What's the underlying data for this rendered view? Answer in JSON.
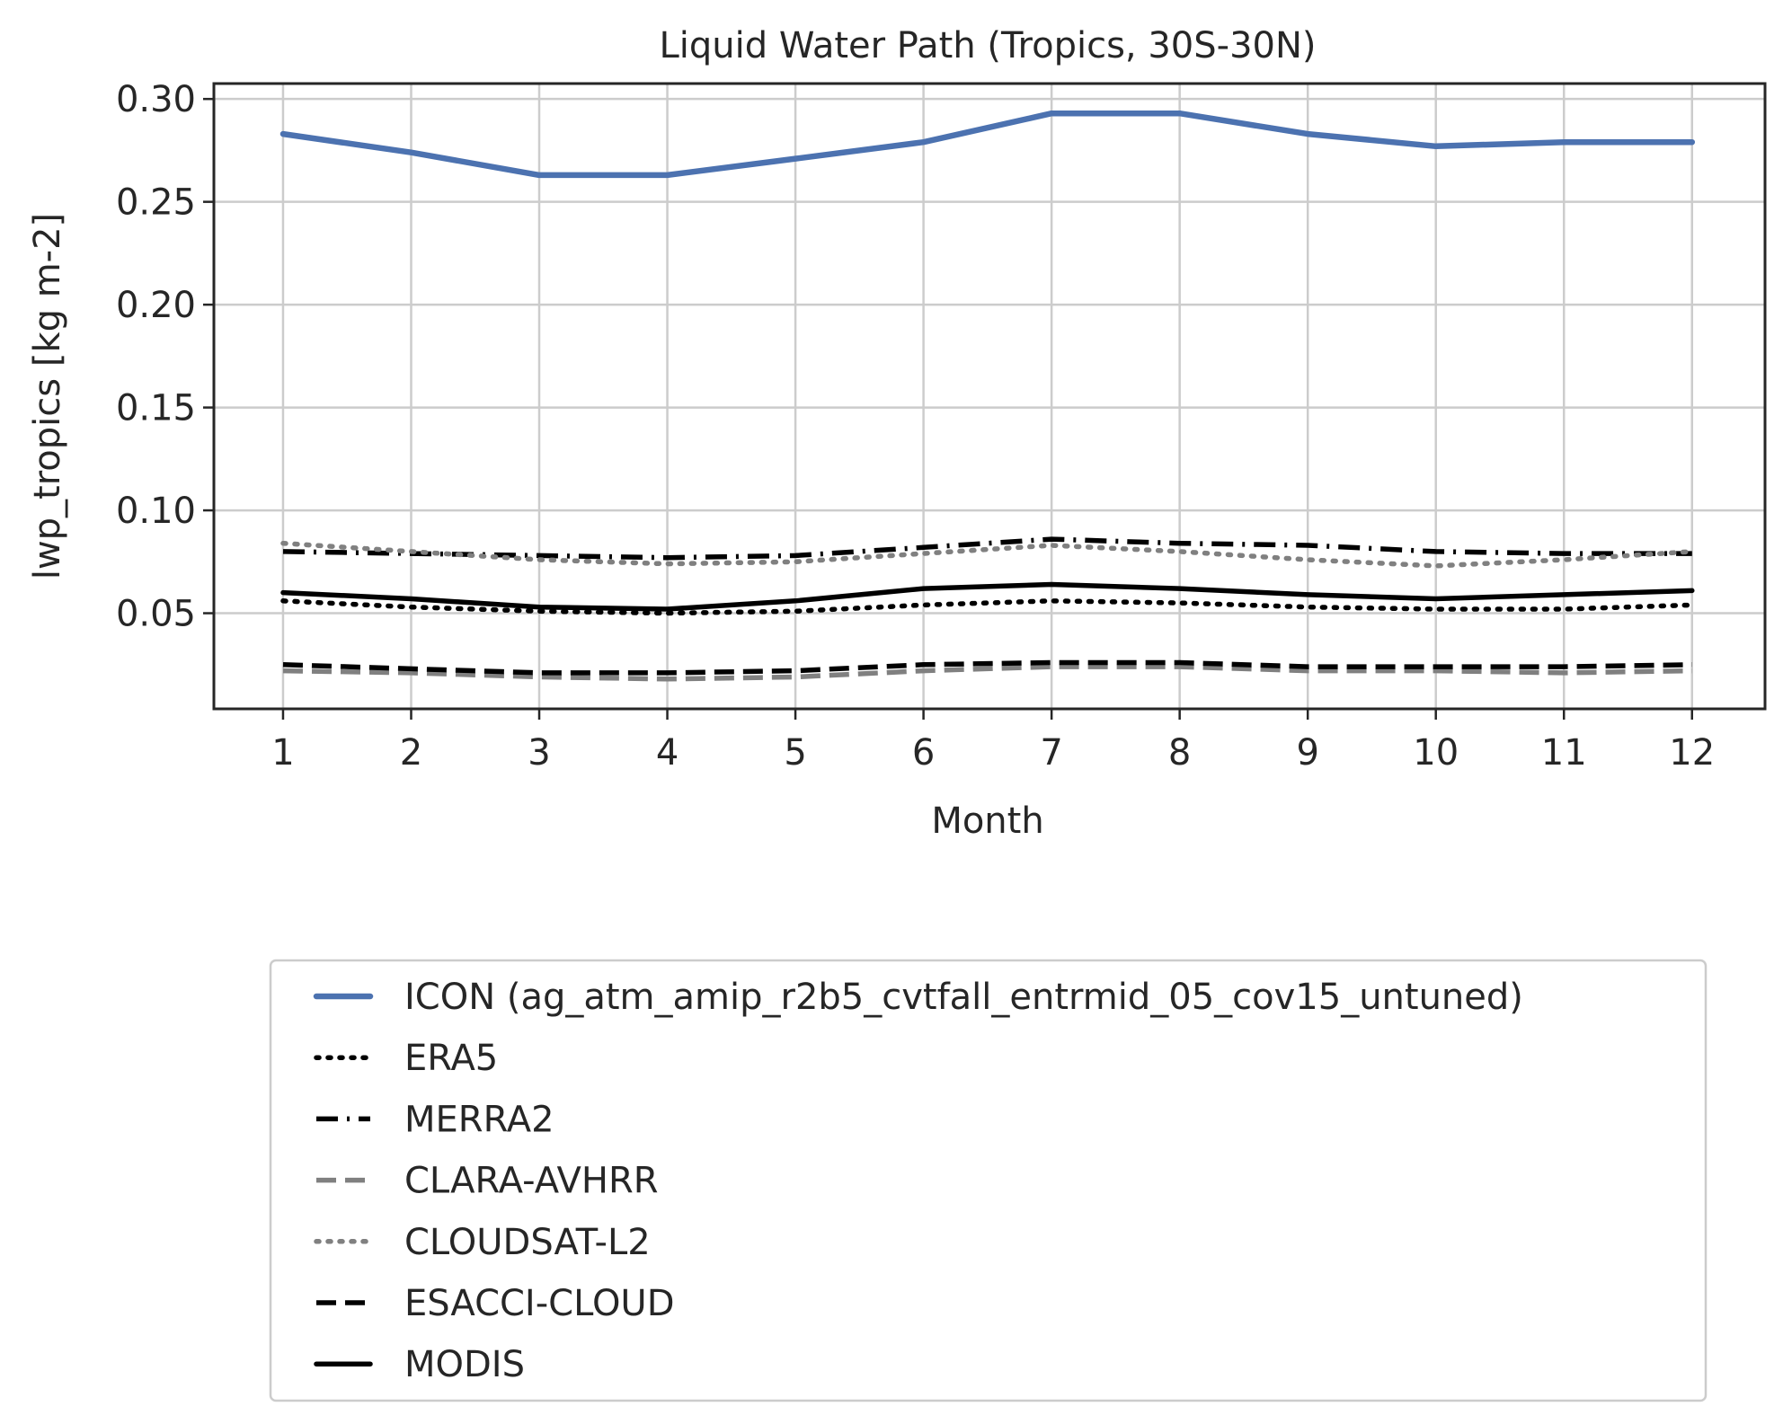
{
  "chart_data": {
    "type": "line",
    "title": "Liquid Water Path (Tropics, 30S-30N)",
    "xlabel": "Month",
    "ylabel": "lwp_tropics [kg m-2]",
    "x": [
      1,
      2,
      3,
      4,
      5,
      6,
      7,
      8,
      9,
      10,
      11,
      12
    ],
    "x_ticks": [
      "1",
      "2",
      "3",
      "4",
      "5",
      "6",
      "7",
      "8",
      "9",
      "10",
      "11",
      "12"
    ],
    "y_ticks": [
      "0.05",
      "0.10",
      "0.15",
      "0.20",
      "0.25",
      "0.30"
    ],
    "xlim": [
      0.46,
      12.57
    ],
    "ylim": [
      0.0035,
      0.3075
    ],
    "grid": true,
    "legend_position": "below",
    "series": [
      {
        "name": "ICON (ag_atm_amip_r2b5_cvtfall_entrmid_05_cov15_untuned)",
        "color": "#4c72b0",
        "style": "solid",
        "values": [
          0.283,
          0.274,
          0.263,
          0.263,
          0.271,
          0.279,
          0.293,
          0.293,
          0.283,
          0.277,
          0.279,
          0.279
        ]
      },
      {
        "name": "ERA5",
        "color": "#000000",
        "style": "dotted",
        "values": [
          0.056,
          0.053,
          0.051,
          0.05,
          0.051,
          0.054,
          0.056,
          0.055,
          0.053,
          0.052,
          0.052,
          0.054
        ]
      },
      {
        "name": "MERRA2",
        "color": "#000000",
        "style": "dashdot",
        "values": [
          0.08,
          0.079,
          0.078,
          0.077,
          0.078,
          0.082,
          0.086,
          0.084,
          0.083,
          0.08,
          0.079,
          0.079
        ]
      },
      {
        "name": "CLARA-AVHRR",
        "color": "#808080",
        "style": "dashed",
        "values": [
          0.022,
          0.021,
          0.019,
          0.018,
          0.019,
          0.022,
          0.024,
          0.024,
          0.022,
          0.022,
          0.021,
          0.022
        ]
      },
      {
        "name": "CLOUDSAT-L2",
        "color": "#808080",
        "style": "dotted",
        "values": [
          0.084,
          0.08,
          0.076,
          0.074,
          0.075,
          0.079,
          0.083,
          0.08,
          0.076,
          0.073,
          0.076,
          0.08
        ]
      },
      {
        "name": "ESACCI-CLOUD",
        "color": "#000000",
        "style": "dashed",
        "values": [
          0.025,
          0.023,
          0.021,
          0.021,
          0.022,
          0.025,
          0.026,
          0.026,
          0.024,
          0.024,
          0.024,
          0.025
        ]
      },
      {
        "name": "MODIS",
        "color": "#000000",
        "style": "solid",
        "values": [
          0.06,
          0.057,
          0.053,
          0.052,
          0.056,
          0.062,
          0.064,
          0.062,
          0.059,
          0.057,
          0.059,
          0.061
        ]
      }
    ]
  }
}
